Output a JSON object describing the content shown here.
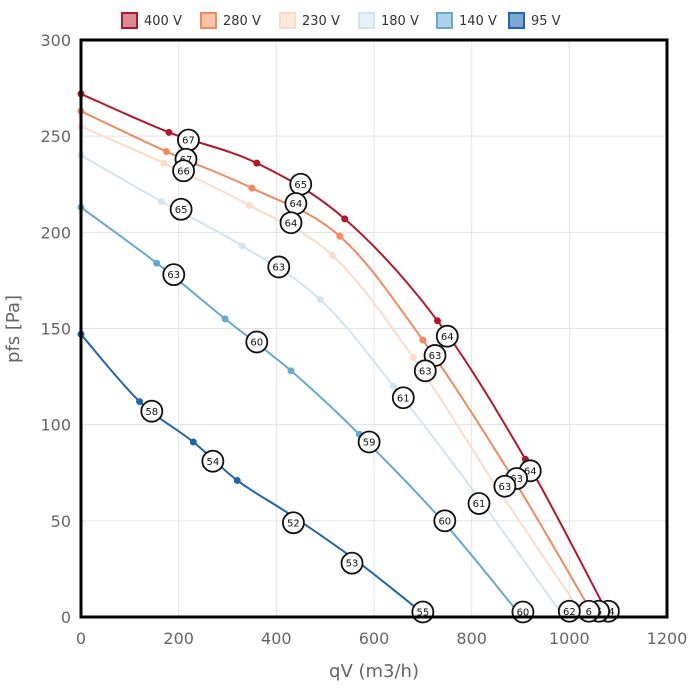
{
  "chart_data": {
    "type": "line",
    "xlabel": "qV (m3/h)",
    "ylabel": "pfs [Pa]",
    "xlim": [
      0,
      1200
    ],
    "ylim": [
      0,
      300
    ],
    "x_ticks": [
      0,
      200,
      400,
      600,
      800,
      1000,
      1200
    ],
    "y_ticks": [
      0,
      50,
      100,
      150,
      200,
      250,
      300
    ],
    "grid": true,
    "legend_position": "top",
    "series": [
      {
        "name": "400 V",
        "color": "#b2182b",
        "fill": "#d98a94",
        "points": [
          [
            0,
            272
          ],
          [
            180,
            252
          ],
          [
            360,
            236
          ],
          [
            540,
            207
          ],
          [
            730,
            154
          ],
          [
            910,
            82
          ],
          [
            1070,
            6
          ]
        ],
        "labels": [
          {
            "x": 220,
            "y": 248,
            "text": "67"
          },
          {
            "x": 450,
            "y": 225,
            "text": "65"
          },
          {
            "x": 750,
            "y": 146,
            "text": "64"
          },
          {
            "x": 920,
            "y": 76,
            "text": "64"
          },
          {
            "x": 1080,
            "y": 3,
            "text": "64"
          }
        ]
      },
      {
        "name": "280 V",
        "color": "#ef8a62",
        "fill": "#f7c4aa",
        "points": [
          [
            0,
            263
          ],
          [
            175,
            242
          ],
          [
            350,
            223
          ],
          [
            530,
            198
          ],
          [
            700,
            144
          ],
          [
            880,
            74
          ],
          [
            1040,
            5
          ]
        ],
        "labels": [
          {
            "x": 215,
            "y": 238,
            "text": "67"
          },
          {
            "x": 440,
            "y": 215,
            "text": "64"
          },
          {
            "x": 725,
            "y": 136,
            "text": "63"
          },
          {
            "x": 892,
            "y": 72,
            "text": "63"
          },
          {
            "x": 1060,
            "y": 3,
            "text": "6"
          }
        ]
      },
      {
        "name": "230 V",
        "color": "#fddbc7",
        "fill": "#fde9dd",
        "points": [
          [
            0,
            255
          ],
          [
            170,
            236
          ],
          [
            345,
            214
          ],
          [
            515,
            188
          ],
          [
            680,
            135
          ],
          [
            850,
            68
          ],
          [
            1020,
            4
          ]
        ],
        "labels": [
          {
            "x": 210,
            "y": 232,
            "text": "66"
          },
          {
            "x": 430,
            "y": 205,
            "text": "64"
          },
          {
            "x": 705,
            "y": 128,
            "text": "63"
          },
          {
            "x": 868,
            "y": 68,
            "text": "63"
          },
          {
            "x": 1040,
            "y": 3,
            "text": "6"
          }
        ]
      },
      {
        "name": "180 V",
        "color": "#d1e5f0",
        "fill": "#e6f1f7",
        "points": [
          [
            0,
            240
          ],
          [
            165,
            216
          ],
          [
            330,
            193
          ],
          [
            490,
            165
          ],
          [
            640,
            120
          ],
          [
            820,
            60
          ],
          [
            980,
            3
          ]
        ],
        "labels": [
          {
            "x": 205,
            "y": 212,
            "text": "65"
          },
          {
            "x": 405,
            "y": 182,
            "text": "63"
          },
          {
            "x": 660,
            "y": 114,
            "text": "61"
          },
          {
            "x": 815,
            "y": 59,
            "text": "61"
          },
          {
            "x": 1000,
            "y": 3,
            "text": "62"
          }
        ]
      },
      {
        "name": "140 V",
        "color": "#67a9cf",
        "fill": "#aed2e8",
        "points": [
          [
            0,
            213
          ],
          [
            155,
            184
          ],
          [
            295,
            155
          ],
          [
            430,
            128
          ],
          [
            570,
            95
          ],
          [
            740,
            50
          ],
          [
            890,
            4
          ]
        ],
        "labels": [
          {
            "x": 190,
            "y": 178,
            "text": "63"
          },
          {
            "x": 360,
            "y": 143,
            "text": "60"
          },
          {
            "x": 590,
            "y": 91,
            "text": "59"
          },
          {
            "x": 745,
            "y": 50,
            "text": "60"
          },
          {
            "x": 905,
            "y": 2,
            "text": "60"
          }
        ]
      },
      {
        "name": "95 V",
        "color": "#2166ac",
        "fill": "#7ea8d4",
        "points": [
          [
            0,
            147
          ],
          [
            120,
            112
          ],
          [
            230,
            91
          ],
          [
            320,
            71
          ],
          [
            430,
            53
          ],
          [
            560,
            30
          ],
          [
            700,
            2
          ]
        ],
        "labels": [
          {
            "x": 145,
            "y": 107,
            "text": "58"
          },
          {
            "x": 270,
            "y": 81,
            "text": "54"
          },
          {
            "x": 435,
            "y": 49,
            "text": "52"
          },
          {
            "x": 555,
            "y": 28,
            "text": "53"
          },
          {
            "x": 700,
            "y": 1,
            "text": "55"
          }
        ]
      }
    ]
  }
}
